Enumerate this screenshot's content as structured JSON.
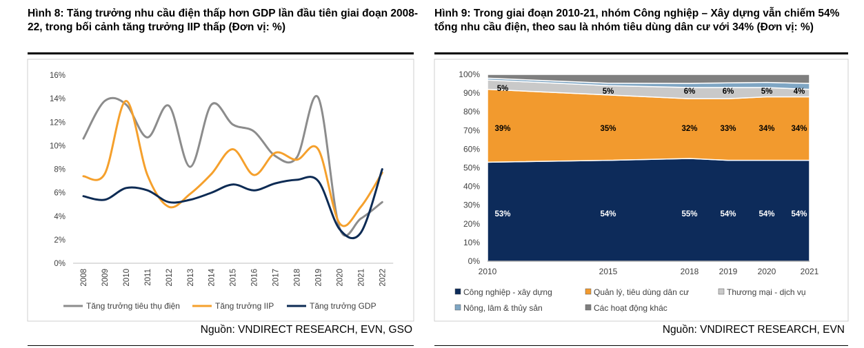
{
  "left": {
    "title": "Hình 8: Tăng trưởng nhu cầu điện thấp hơn GDP lần đầu tiên giai đoạn 2008-22, trong bối cảnh tăng trưởng IIP thấp (Đơn vị: %)",
    "source": "Nguồn: VNDIRECT RESEARCH, EVN, GSO"
  },
  "right": {
    "title": "Hình 9: Trong giai đoạn 2010-21, nhóm Công nghiệp – Xây dựng vẫn chiếm 54% tổng nhu cầu điện, theo sau là nhóm tiêu dùng dân cư với 34% (Đơn vị: %)",
    "source": "Nguồn: VNDIRECT RESEARCH, EVN"
  },
  "chart_data": [
    {
      "type": "line",
      "title": "",
      "xlabel": "",
      "ylabel": "",
      "categories": [
        "2008",
        "2009",
        "2010",
        "2011",
        "2012",
        "2013",
        "2014",
        "2015",
        "2016",
        "2017",
        "2018",
        "2019",
        "2020",
        "2021",
        "2022"
      ],
      "y_ticks": [
        "0%",
        "2%",
        "4%",
        "6%",
        "8%",
        "10%",
        "12%",
        "14%",
        "16%"
      ],
      "ylim": [
        0,
        16
      ],
      "grid": false,
      "legend_position": "bottom",
      "series": [
        {
          "name": "Tăng trưởng tiêu thụ điện",
          "color": "#8c8c8c",
          "values": [
            10.6,
            13.8,
            13.5,
            10.7,
            13.4,
            8.2,
            13.5,
            11.8,
            11.2,
            9.1,
            9.0,
            14.1,
            3.0,
            3.8,
            5.2
          ]
        },
        {
          "name": "Tăng trưởng IIP",
          "color": "#f5a02c",
          "values": [
            7.4,
            7.6,
            13.8,
            7.5,
            4.8,
            5.9,
            7.6,
            9.7,
            7.5,
            9.4,
            8.8,
            9.7,
            3.4,
            4.8,
            7.7
          ]
        },
        {
          "name": "Tăng trưởng GDP",
          "color": "#0d2b54",
          "values": [
            5.7,
            5.4,
            6.4,
            6.2,
            5.2,
            5.4,
            6.0,
            6.7,
            6.2,
            6.8,
            7.1,
            7.0,
            2.9,
            2.6,
            8.0
          ]
        }
      ]
    },
    {
      "type": "area",
      "stacked": true,
      "title": "",
      "xlabel": "",
      "ylabel": "",
      "x": [
        "2010",
        "2015",
        "2018",
        "2019",
        "2020",
        "2021"
      ],
      "y_ticks": [
        "0%",
        "10%",
        "20%",
        "30%",
        "40%",
        "50%",
        "60%",
        "70%",
        "80%",
        "90%",
        "100%"
      ],
      "ylim": [
        0,
        100
      ],
      "legend_position": "bottom",
      "series": [
        {
          "name": "Công nghiệp - xây dựng",
          "color": "#0d2b5a",
          "values": [
            53,
            54,
            55,
            54,
            54,
            54
          ],
          "labels": [
            "53%",
            "54%",
            "55%",
            "54%",
            "54%",
            "54%"
          ]
        },
        {
          "name": "Quản lý, tiêu dùng dân cư",
          "color": "#f29a2e",
          "values": [
            39,
            35,
            32,
            33,
            34,
            34
          ],
          "labels": [
            "39%",
            "35%",
            "32%",
            "33%",
            "34%",
            "34%"
          ]
        },
        {
          "name": "Thương mại - dịch vụ",
          "color": "#c9c9c9",
          "values": [
            5,
            5,
            6,
            6,
            5,
            4
          ],
          "labels": [
            "5%",
            "5%",
            "6%",
            "6%",
            "5%",
            "4%"
          ]
        },
        {
          "name": "Nông, lâm & thủy sản",
          "color": "#7fa6c4",
          "values": [
            1,
            1.3,
            2.2,
            2.5,
            2.7,
            3.2
          ]
        },
        {
          "name": "Các hoạt động khác",
          "color": "#7f7f7f",
          "values": [
            2,
            4.7,
            4.8,
            4.5,
            4.3,
            4.8
          ]
        }
      ]
    }
  ]
}
